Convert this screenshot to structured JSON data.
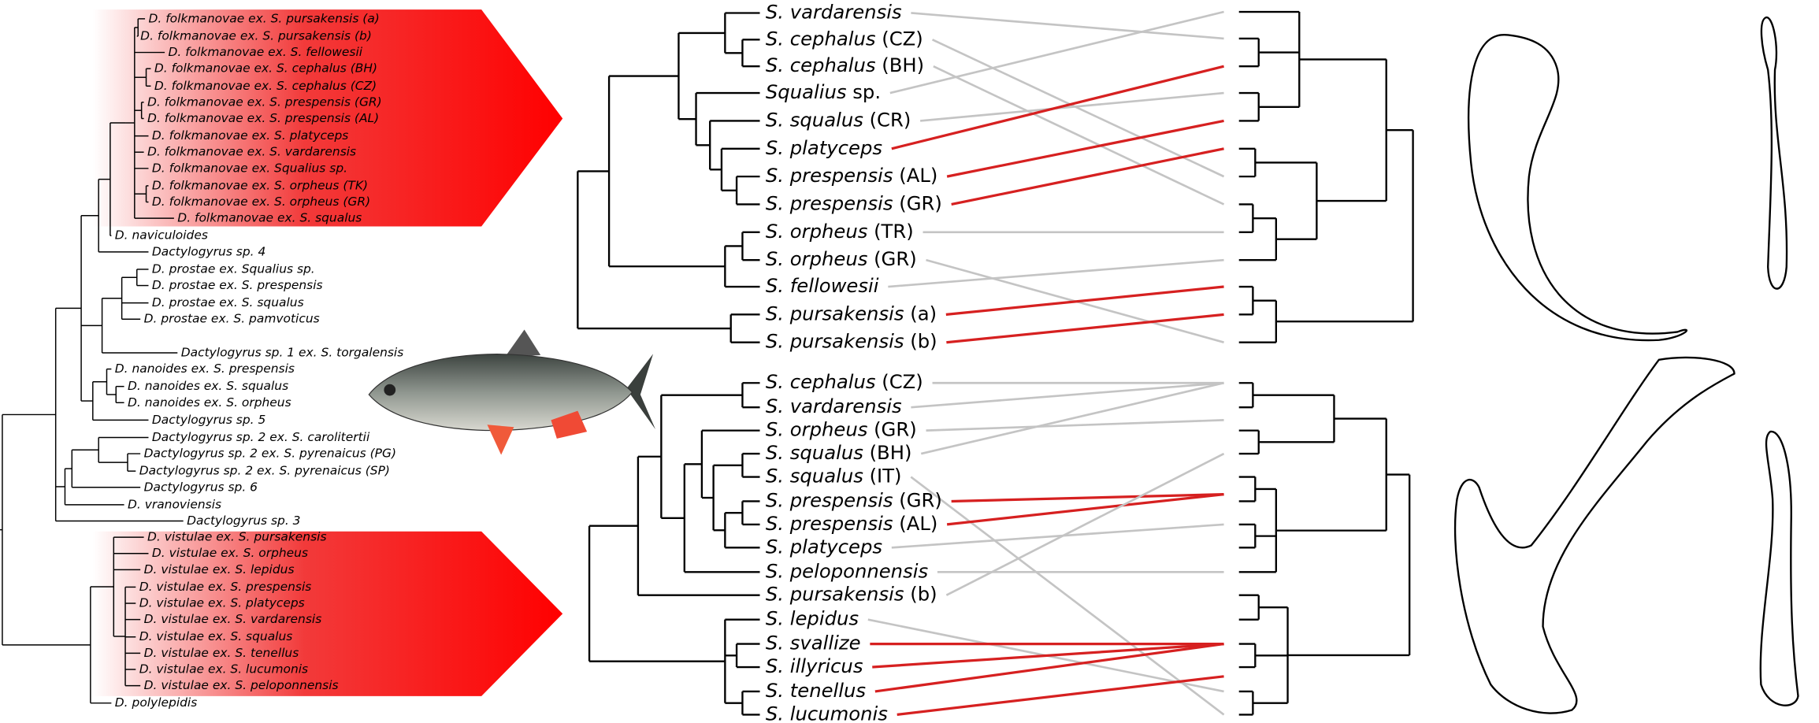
{
  "left_tree": {
    "labels": [
      "D. folkmanovae ex. S. pursakensis (a)",
      "D. folkmanovae ex. S. pursakensis (b)",
      "D. folkmanovae ex. S. fellowesii",
      "D. folkmanovae ex. S. cephalus (BH)",
      "D. folkmanovae ex. S. cephalus (CZ)",
      "D. folkmanovae ex. S. prespensis (GR)",
      "D. folkmanovae ex. S. prespensis (AL)",
      "D. folkmanovae ex. S. platyceps",
      "D. folkmanovae ex. S. vardarensis",
      "D. folkmanovae ex. Squalius sp.",
      "D. folkmanovae ex. S. orpheus (TK)",
      "D. folkmanovae ex. S. orpheus (GR)",
      "D. folkmanovae ex. S. squalus",
      "D. naviculoides",
      "Dactylogyrus sp. 4",
      "D. prostae ex. Squalius sp.",
      "D. prostae ex. S. prespensis",
      "D. prostae ex. S. squalus",
      "D. prostae ex. S. pamvoticus",
      "Dactylogyrus sp. 1 ex. S. torgalensis",
      "D. nanoides ex. S. prespensis",
      "D. nanoides ex. S. squalus",
      "D. nanoides ex. S. orpheus",
      "Dactylogyrus sp. 5",
      "Dactylogyrus sp. 2 ex. S. carolitertii",
      "Dactylogyrus sp. 2 ex. S. pyrenaicus (PG)",
      "Dactylogyrus sp. 2 ex. S. pyrenaicus (SP)",
      "Dactylogyrus sp. 6",
      "D. vranoviensis",
      "Dactylogyrus sp. 3",
      "D. vistulae ex. S. pursakensis",
      "D. vistulae ex. S. orpheus",
      "D. vistulae ex. S. lepidus",
      "D. vistulae ex. S. prespensis",
      "D. vistulae ex. S. platyceps",
      "D. vistulae ex. S. vardarensis",
      "D. vistulae ex. S. squalus",
      "D. vistulae ex. S. tenellus",
      "D. vistulae ex. S. lucumonis",
      "D. vistulae ex. S. peloponnensis",
      "D. polylepidis"
    ]
  },
  "host_tree_top": {
    "leaves": [
      {
        "name": "S. vardarensis"
      },
      {
        "name": "S. cephalus",
        "qualifier": "(CZ)"
      },
      {
        "name": "S. cephalus",
        "qualifier": "(BH)"
      },
      {
        "name": "Squalius",
        "qualifier": "sp."
      },
      {
        "name": "S. squalus",
        "qualifier": "(CR)"
      },
      {
        "name": "S. platyceps"
      },
      {
        "name": "S. prespensis",
        "qualifier": "(AL)"
      },
      {
        "name": "S. prespensis",
        "qualifier": "(GR)"
      },
      {
        "name": "S. orpheus",
        "qualifier": "(TR)"
      },
      {
        "name": "S. orpheus",
        "qualifier": "(GR)"
      },
      {
        "name": "S. fellowesii"
      },
      {
        "name": "S. pursakensis",
        "qualifier": "(a)"
      },
      {
        "name": "S. pursakensis",
        "qualifier": "(b)"
      }
    ]
  },
  "host_tree_bottom": {
    "leaves": [
      {
        "name": "S. cephalus",
        "qualifier": "(CZ)"
      },
      {
        "name": "S. vardarensis"
      },
      {
        "name": "S. orpheus",
        "qualifier": "(GR)"
      },
      {
        "name": "S. squalus",
        "qualifier": "(BH)"
      },
      {
        "name": "S. squalus",
        "qualifier": "(IT)"
      },
      {
        "name": "S. prespensis",
        "qualifier": "(GR)"
      },
      {
        "name": "S. prespensis",
        "qualifier": "(AL)"
      },
      {
        "name": "S. platyceps"
      },
      {
        "name": "S. peloponnensis"
      },
      {
        "name": "S. pursakensis",
        "qualifier": "(b)"
      },
      {
        "name": "S. lepidus"
      },
      {
        "name": "S. svallize"
      },
      {
        "name": "S. illyricus"
      },
      {
        "name": "S. tenellus"
      },
      {
        "name": "S. lucumonis"
      }
    ]
  }
}
